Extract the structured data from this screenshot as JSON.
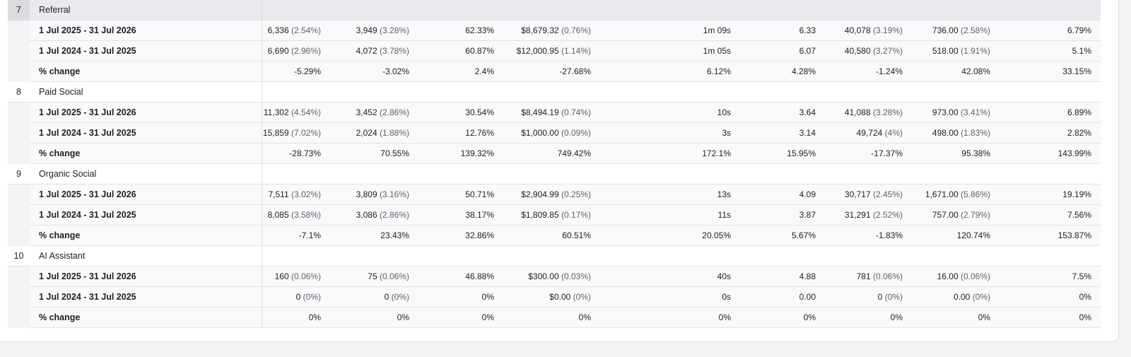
{
  "groups": [
    {
      "index": "7",
      "name": "Referral",
      "rows": [
        {
          "label": "1 Jul 2025 - 31 Jul 2026",
          "cells": [
            [
              "6,336",
              "(2.54%)"
            ],
            [
              "3,949",
              "(3.28%)"
            ],
            [
              "62.33%",
              ""
            ],
            [
              "$8,679.32",
              "(0.76%)"
            ],
            [
              "1m 09s",
              ""
            ],
            [
              "6.33",
              ""
            ],
            [
              "40,078",
              "(3.19%)"
            ],
            [
              "736.00",
              "(2.58%)"
            ],
            [
              "6.79%",
              ""
            ]
          ]
        },
        {
          "label": "1 Jul 2024 - 31 Jul 2025",
          "cells": [
            [
              "6,690",
              "(2.96%)"
            ],
            [
              "4,072",
              "(3.78%)"
            ],
            [
              "60.87%",
              ""
            ],
            [
              "$12,000.95",
              "(1.14%)"
            ],
            [
              "1m 05s",
              ""
            ],
            [
              "6.07",
              ""
            ],
            [
              "40,580",
              "(3.27%)"
            ],
            [
              "518.00",
              "(1.91%)"
            ],
            [
              "5.1%",
              ""
            ]
          ]
        },
        {
          "label": "% change",
          "cells": [
            [
              "-5.29%",
              ""
            ],
            [
              "-3.02%",
              ""
            ],
            [
              "2.4%",
              ""
            ],
            [
              "-27.68%",
              ""
            ],
            [
              "6.12%",
              ""
            ],
            [
              "4.28%",
              ""
            ],
            [
              "-1.24%",
              ""
            ],
            [
              "42.08%",
              ""
            ],
            [
              "33.15%",
              ""
            ]
          ]
        }
      ]
    },
    {
      "index": "8",
      "name": "Paid Social",
      "rows": [
        {
          "label": "1 Jul 2025 - 31 Jul 2026",
          "cells": [
            [
              "11,302",
              "(4.54%)"
            ],
            [
              "3,452",
              "(2.86%)"
            ],
            [
              "30.54%",
              ""
            ],
            [
              "$8,494.19",
              "(0.74%)"
            ],
            [
              "10s",
              ""
            ],
            [
              "3.64",
              ""
            ],
            [
              "41,088",
              "(3.28%)"
            ],
            [
              "973.00",
              "(3.41%)"
            ],
            [
              "6.89%",
              ""
            ]
          ]
        },
        {
          "label": "1 Jul 2024 - 31 Jul 2025",
          "cells": [
            [
              "15,859",
              "(7.02%)"
            ],
            [
              "2,024",
              "(1.88%)"
            ],
            [
              "12.76%",
              ""
            ],
            [
              "$1,000.00",
              "(0.09%)"
            ],
            [
              "3s",
              ""
            ],
            [
              "3.14",
              ""
            ],
            [
              "49,724",
              "(4%)"
            ],
            [
              "498.00",
              "(1.83%)"
            ],
            [
              "2.82%",
              ""
            ]
          ]
        },
        {
          "label": "% change",
          "cells": [
            [
              "-28.73%",
              ""
            ],
            [
              "70.55%",
              ""
            ],
            [
              "139.32%",
              ""
            ],
            [
              "749.42%",
              ""
            ],
            [
              "172.1%",
              ""
            ],
            [
              "15.95%",
              ""
            ],
            [
              "-17.37%",
              ""
            ],
            [
              "95.38%",
              ""
            ],
            [
              "143.99%",
              ""
            ]
          ]
        }
      ]
    },
    {
      "index": "9",
      "name": "Organic Social",
      "rows": [
        {
          "label": "1 Jul 2025 - 31 Jul 2026",
          "cells": [
            [
              "7,511",
              "(3.02%)"
            ],
            [
              "3,809",
              "(3.16%)"
            ],
            [
              "50.71%",
              ""
            ],
            [
              "$2,904.99",
              "(0.25%)"
            ],
            [
              "13s",
              ""
            ],
            [
              "4.09",
              ""
            ],
            [
              "30,717",
              "(2.45%)"
            ],
            [
              "1,671.00",
              "(5.86%)"
            ],
            [
              "19.19%",
              ""
            ]
          ]
        },
        {
          "label": "1 Jul 2024 - 31 Jul 2025",
          "cells": [
            [
              "8,085",
              "(3.58%)"
            ],
            [
              "3,086",
              "(2.86%)"
            ],
            [
              "38.17%",
              ""
            ],
            [
              "$1,809.85",
              "(0.17%)"
            ],
            [
              "11s",
              ""
            ],
            [
              "3.87",
              ""
            ],
            [
              "31,291",
              "(2.52%)"
            ],
            [
              "757.00",
              "(2.79%)"
            ],
            [
              "7.56%",
              ""
            ]
          ]
        },
        {
          "label": "% change",
          "cells": [
            [
              "-7.1%",
              ""
            ],
            [
              "23.43%",
              ""
            ],
            [
              "32.86%",
              ""
            ],
            [
              "60.51%",
              ""
            ],
            [
              "20.05%",
              ""
            ],
            [
              "5.67%",
              ""
            ],
            [
              "-1.83%",
              ""
            ],
            [
              "120.74%",
              ""
            ],
            [
              "153.87%",
              ""
            ]
          ]
        }
      ]
    },
    {
      "index": "10",
      "name": "AI Assistant",
      "rows": [
        {
          "label": "1 Jul 2025 - 31 Jul 2026",
          "cells": [
            [
              "160",
              "(0.06%)"
            ],
            [
              "75",
              "(0.06%)"
            ],
            [
              "46.88%",
              ""
            ],
            [
              "$300.00",
              "(0.03%)"
            ],
            [
              "40s",
              ""
            ],
            [
              "4.88",
              ""
            ],
            [
              "781",
              "(0.06%)"
            ],
            [
              "16.00",
              "(0.06%)"
            ],
            [
              "7.5%",
              ""
            ]
          ]
        },
        {
          "label": "1 Jul 2024 - 31 Jul 2025",
          "cells": [
            [
              "0",
              "(0%)"
            ],
            [
              "0",
              "(0%)"
            ],
            [
              "0%",
              ""
            ],
            [
              "$0.00",
              "(0%)"
            ],
            [
              "0s",
              ""
            ],
            [
              "0.00",
              ""
            ],
            [
              "0",
              "(0%)"
            ],
            [
              "0.00",
              "(0%)"
            ],
            [
              "0%",
              ""
            ]
          ]
        },
        {
          "label": "% change",
          "cells": [
            [
              "0%",
              ""
            ],
            [
              "0%",
              ""
            ],
            [
              "0%",
              ""
            ],
            [
              "0%",
              ""
            ],
            [
              "0%",
              ""
            ],
            [
              "0%",
              ""
            ],
            [
              "0%",
              ""
            ],
            [
              "0%",
              ""
            ],
            [
              "0%",
              ""
            ]
          ]
        }
      ]
    }
  ]
}
